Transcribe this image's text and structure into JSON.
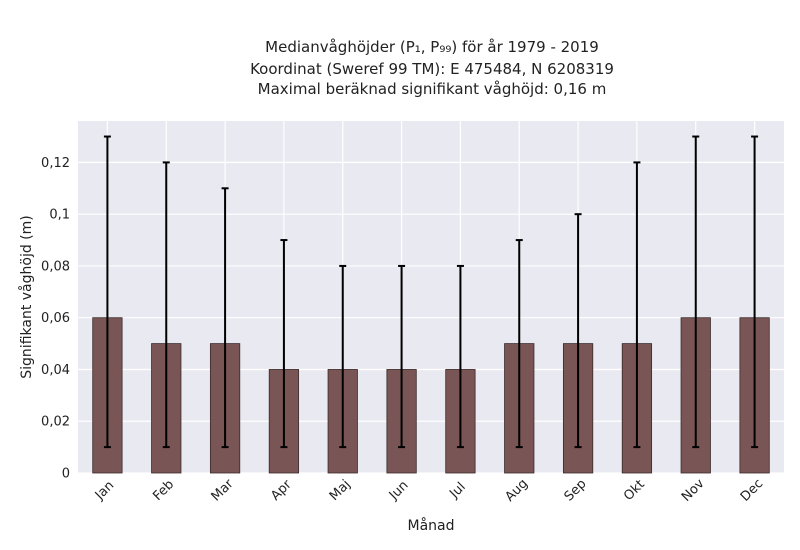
{
  "chart_data": {
    "type": "bar",
    "title_lines": [
      "Medianvåghöjder (P₁, P₉₉) för år 1979 - 2019",
      "Koordinat (Sweref 99 TM): E 475484, N 6208319",
      "Maximal beräknad signifikant våghöjd: 0,16 m"
    ],
    "xlabel": "Månad",
    "ylabel": "Signifikant våghöjd (m)",
    "categories": [
      "Jan",
      "Feb",
      "Mar",
      "Apr",
      "Maj",
      "Jun",
      "Jul",
      "Aug",
      "Sep",
      "Okt",
      "Nov",
      "Dec"
    ],
    "values": [
      0.06,
      0.05,
      0.05,
      0.04,
      0.04,
      0.04,
      0.04,
      0.05,
      0.05,
      0.05,
      0.06,
      0.06
    ],
    "error_low": [
      0.01,
      0.01,
      0.01,
      0.01,
      0.01,
      0.01,
      0.01,
      0.01,
      0.01,
      0.01,
      0.01,
      0.01
    ],
    "error_high": [
      0.13,
      0.12,
      0.11,
      0.09,
      0.08,
      0.08,
      0.08,
      0.09,
      0.1,
      0.12,
      0.13,
      0.13
    ],
    "ylim": [
      0,
      0.136
    ],
    "yticks": [
      0,
      0.02,
      0.04,
      0.06,
      0.08,
      0.1,
      0.12
    ],
    "ytick_labels": [
      "0",
      "0,02",
      "0,04",
      "0,06",
      "0,08",
      "0,1",
      "0,12"
    ],
    "grid": true,
    "colors": {
      "bar": "#7a5555",
      "bar_edge": "#3a2a2a",
      "background": "#e9e9f1",
      "grid": "#ffffff",
      "errorbar": "#000000"
    }
  }
}
